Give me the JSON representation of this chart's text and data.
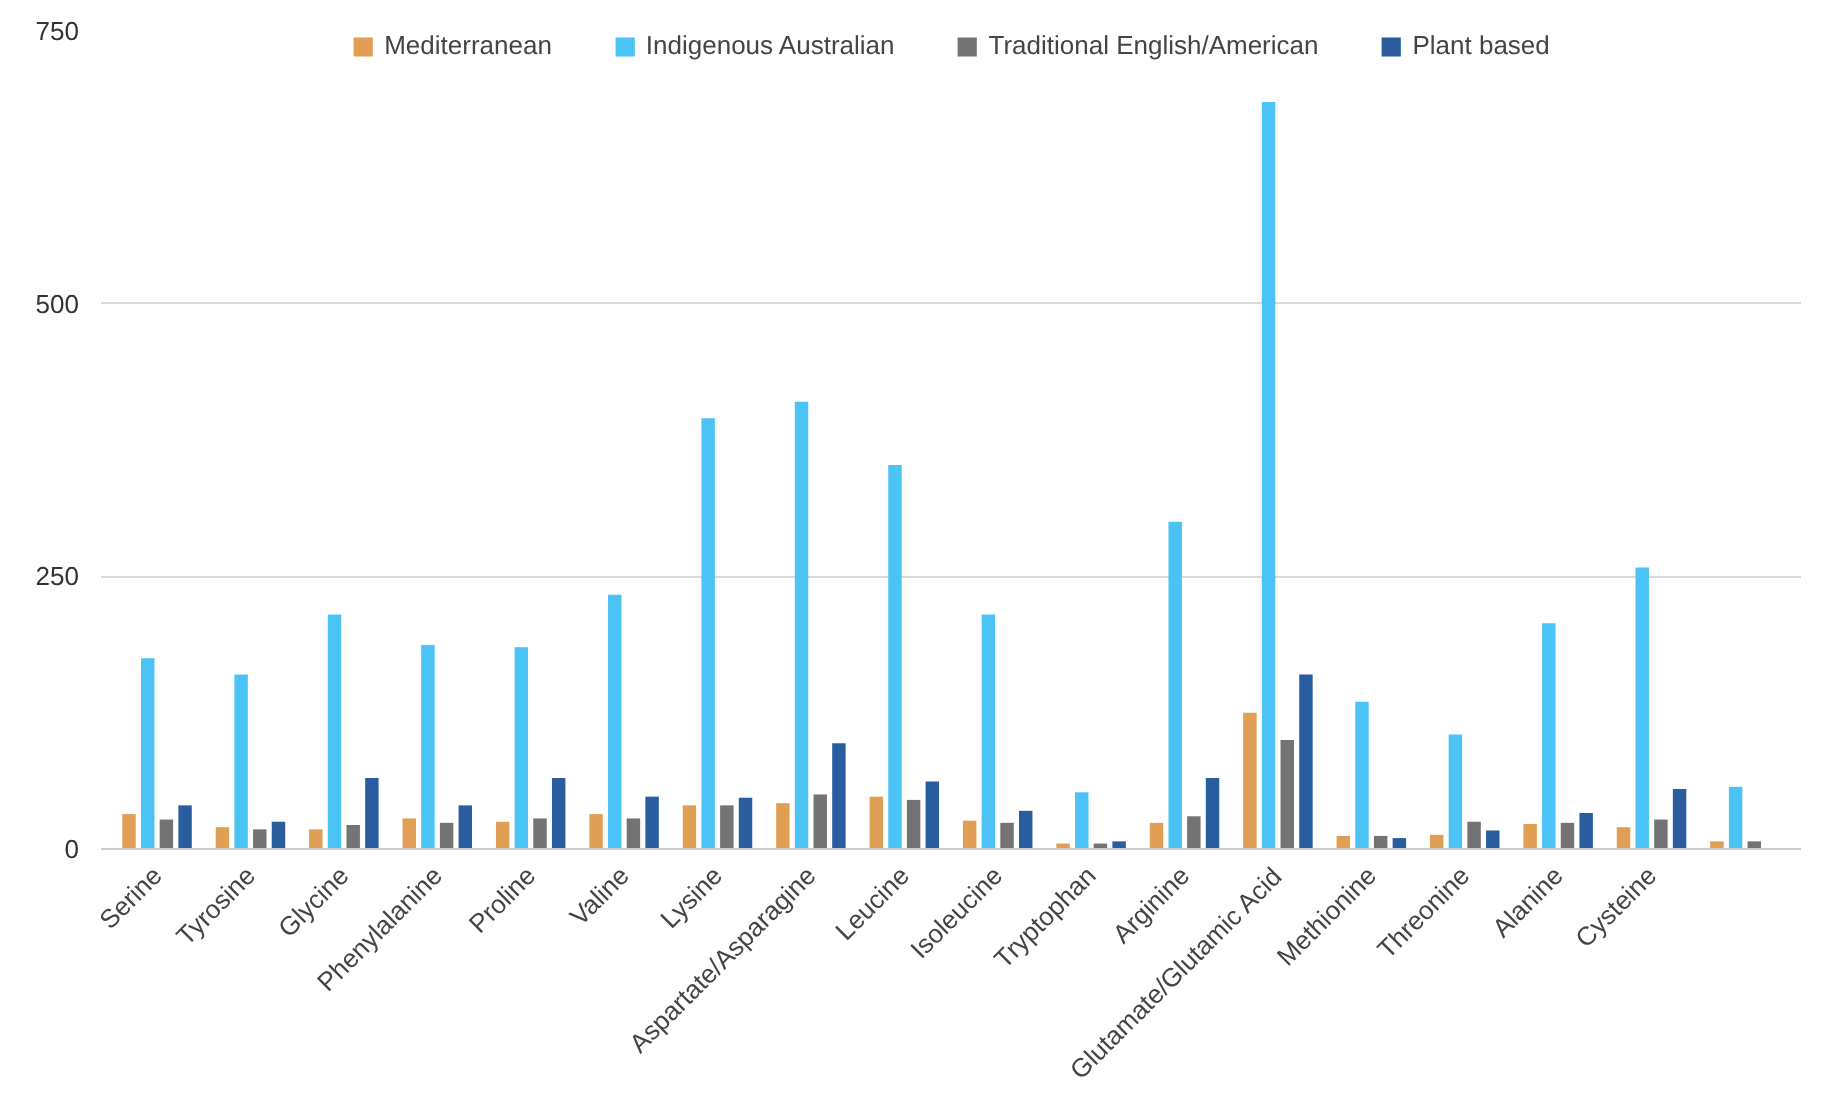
{
  "chart_data": {
    "type": "bar",
    "categories": [
      "Serine",
      "Tyrosine",
      "Glycine",
      "Phenylalanine",
      "Proline",
      "Valine",
      "Lysine",
      "Aspartate/Asparagine",
      "Leucine",
      "Isoleucine",
      "Tryptophan",
      "Arginine",
      "Glutamate/Glutamic Acid",
      "Methionine",
      "Threonine",
      "Alanine",
      "Cysteine",
      null
    ],
    "series": [
      {
        "name": "Mediterranean",
        "color": "#e09f55",
        "values": [
          32,
          20,
          18,
          28,
          25,
          32,
          40,
          42,
          48,
          26,
          5,
          24,
          125,
          12,
          13,
          23,
          20,
          7
        ]
      },
      {
        "name": "Indigenous Australian",
        "color": "#4cc3f5",
        "values": [
          175,
          160,
          215,
          187,
          185,
          233,
          395,
          410,
          352,
          215,
          52,
          300,
          685,
          135,
          105,
          207,
          258,
          57
        ]
      },
      {
        "name": "Traditional English/American",
        "color": "#737373",
        "values": [
          27,
          18,
          22,
          24,
          28,
          28,
          40,
          50,
          45,
          24,
          5,
          30,
          100,
          12,
          25,
          24,
          27,
          7
        ]
      },
      {
        "name": "Plant based",
        "color": "#2a5d9f",
        "values": [
          40,
          25,
          65,
          40,
          65,
          48,
          47,
          97,
          62,
          35,
          7,
          65,
          160,
          10,
          17,
          33,
          55,
          null
        ]
      }
    ],
    "ylim": [
      0,
      750
    ],
    "yticks": [
      0,
      250,
      500,
      750
    ],
    "grid": "y",
    "legend": "top"
  }
}
